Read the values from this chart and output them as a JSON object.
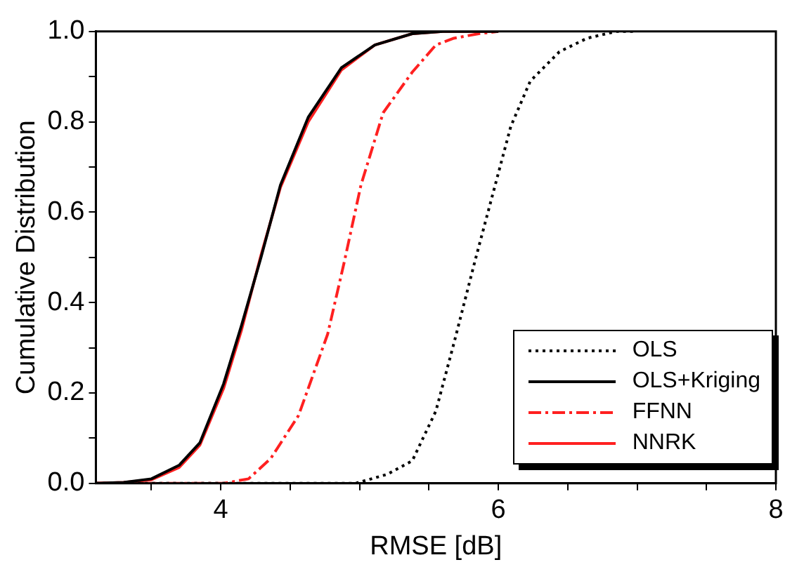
{
  "chart_data": {
    "type": "line",
    "xlabel": "RMSE [dB]",
    "ylabel": "Cumulative Distribution",
    "xlim": [
      3.1,
      8
    ],
    "xticks": [
      {
        "value": 3.5,
        "label": null
      },
      4,
      {
        "value": 4.5,
        "label": null
      },
      {
        "value": 5,
        "label": null
      },
      {
        "value": 5.5,
        "label": null
      },
      6,
      {
        "value": 6.5,
        "label": null
      },
      {
        "value": 7,
        "label": null
      },
      {
        "value": 7.5,
        "label": null
      },
      8
    ],
    "ylim": [
      0,
      1
    ],
    "yticks": [
      {
        "value": 0,
        "label": "0.0"
      },
      {
        "value": 0.1,
        "label": null
      },
      {
        "value": 0.2,
        "label": "0.2"
      },
      {
        "value": 0.3,
        "label": null
      },
      {
        "value": 0.4,
        "label": "0.4"
      },
      {
        "value": 0.5,
        "label": null
      },
      {
        "value": 0.6,
        "label": "0.6"
      },
      {
        "value": 0.7,
        "label": null
      },
      {
        "value": 0.8,
        "label": "0.8"
      },
      {
        "value": 0.9,
        "label": null
      },
      {
        "value": 1,
        "label": "1.0"
      }
    ],
    "grid": false,
    "legend": "bottom right",
    "marker": "none",
    "series": [
      {
        "name": "OLS",
        "color": "#000000",
        "line_style": "dotted",
        "x": [
          3.1,
          4.5,
          4.97,
          5.2,
          5.38,
          5.55,
          5.68,
          5.83,
          5.96,
          6.09,
          6.23,
          6.44,
          6.64,
          6.85,
          7.0
        ],
        "values": [
          0,
          0,
          0,
          0.02,
          0.05,
          0.16,
          0.31,
          0.49,
          0.64,
          0.79,
          0.89,
          0.955,
          0.985,
          1,
          1
        ]
      },
      {
        "name": "OLS+Kriging",
        "color": "#000000",
        "line_style": "solid",
        "x": [
          3.1,
          3.3,
          3.5,
          3.7,
          3.85,
          4.02,
          4.15,
          4.29,
          4.43,
          4.63,
          4.87,
          5.11,
          5.38,
          5.6,
          6.0
        ],
        "values": [
          0,
          0.002,
          0.01,
          0.04,
          0.09,
          0.22,
          0.35,
          0.5,
          0.66,
          0.81,
          0.92,
          0.97,
          0.995,
          1,
          1
        ]
      },
      {
        "name": "FFNN",
        "color": "#ff2020",
        "line_style": "dashed",
        "x": [
          3.1,
          4.02,
          4.2,
          4.36,
          4.56,
          4.77,
          4.89,
          5.01,
          5.17,
          5.38,
          5.55,
          5.68,
          5.86,
          6.0
        ],
        "values": [
          0,
          0,
          0.01,
          0.055,
          0.15,
          0.33,
          0.49,
          0.66,
          0.82,
          0.91,
          0.97,
          0.985,
          0.995,
          1
        ]
      },
      {
        "name": "NNRK",
        "color": "#ff2020",
        "line_style": "solid",
        "x": [
          3.1,
          3.3,
          3.5,
          3.7,
          3.85,
          4.02,
          4.15,
          4.29,
          4.43,
          4.63,
          4.87,
          5.11,
          5.38,
          5.6,
          6.0
        ],
        "values": [
          0,
          0.002,
          0.008,
          0.035,
          0.085,
          0.21,
          0.34,
          0.505,
          0.655,
          0.8,
          0.915,
          0.97,
          0.995,
          1,
          1
        ]
      }
    ]
  }
}
